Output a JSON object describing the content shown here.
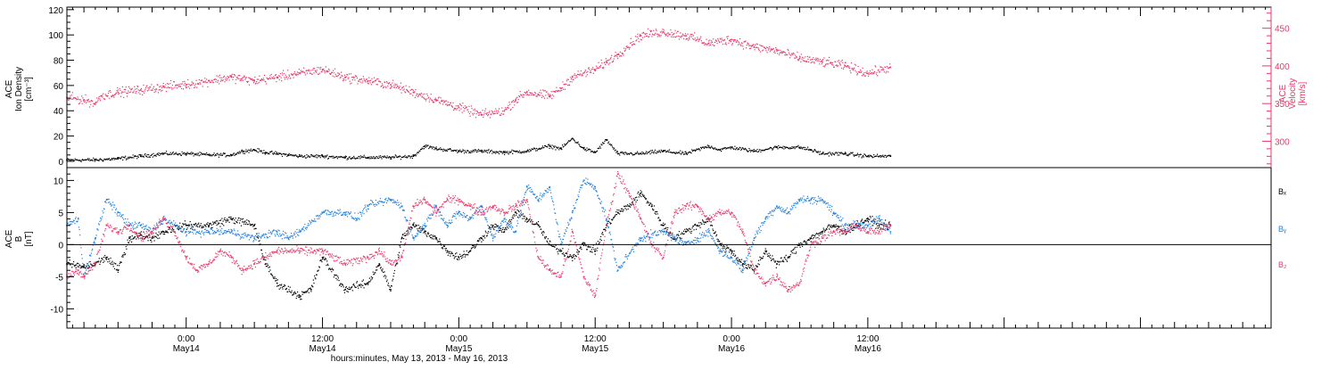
{
  "colors": {
    "black": "#000000",
    "density": "#000000",
    "velocity": "#e8386a",
    "bx": "#000000",
    "by": "#1f7fe0",
    "bz": "#e8386a"
  },
  "xaxis": {
    "title": "hours:minutes, May 13, 2013 - May 16, 2013",
    "range_hours": [
      -10.5,
      95.5
    ],
    "major_ticks": [
      {
        "h": 0,
        "time": "0:00",
        "date": "May14"
      },
      {
        "h": 12,
        "time": "12:00",
        "date": "May14"
      },
      {
        "h": 24,
        "time": "0:00",
        "date": "May15"
      },
      {
        "h": 36,
        "time": "12:00",
        "date": "May15"
      },
      {
        "h": 48,
        "time": "0:00",
        "date": "May16"
      },
      {
        "h": 60,
        "time": "12:00",
        "date": "May16"
      }
    ]
  },
  "chart_data": [
    {
      "type": "scatter",
      "panel": "plasma",
      "ylabel_left": [
        "ACE",
        "Ion Density",
        "[cm⁻³]"
      ],
      "ylabel_right": [
        "ACE",
        "Velocity",
        "[km/s]"
      ],
      "y_left_range": [
        -5,
        122
      ],
      "y_left_ticks": [
        0,
        20,
        40,
        60,
        80,
        100,
        120
      ],
      "y_right_range": [
        265,
        478
      ],
      "y_right_ticks": [
        300,
        350,
        400,
        450
      ],
      "series": [
        {
          "key": "density",
          "axis": "left",
          "x": [
            -10.5,
            -8,
            -6,
            -4,
            -2,
            0,
            2,
            4,
            5,
            6,
            7,
            8,
            9,
            10,
            12,
            14,
            16,
            18,
            20,
            21,
            22,
            24,
            26,
            28,
            30,
            32,
            33,
            34,
            35,
            36,
            37,
            38,
            40,
            42,
            44,
            46,
            47,
            48,
            50,
            52,
            54,
            55,
            56,
            58,
            60,
            62
          ],
          "y": [
            1,
            1,
            2,
            4,
            6,
            6,
            5,
            5,
            8,
            9,
            7,
            6,
            5,
            4,
            4,
            3,
            3,
            3,
            4,
            12,
            10,
            8,
            8,
            7,
            8,
            12,
            10,
            18,
            10,
            7,
            17,
            6,
            6,
            8,
            6,
            12,
            9,
            11,
            8,
            11,
            11,
            9,
            6,
            6,
            4,
            4
          ]
        },
        {
          "key": "velocity",
          "axis": "right",
          "x": [
            -10.5,
            -9,
            -8,
            -7.5,
            -6,
            -4,
            -2,
            0,
            2,
            4,
            6,
            8,
            10,
            12,
            14,
            16,
            18,
            20,
            22,
            24,
            26,
            28,
            29,
            30,
            31,
            32,
            33,
            34,
            36,
            37,
            38,
            40,
            42,
            44,
            46,
            48,
            50,
            52,
            54,
            56,
            58,
            60,
            62
          ],
          "y": [
            358,
            355,
            350,
            360,
            365,
            368,
            372,
            375,
            380,
            385,
            380,
            385,
            390,
            395,
            385,
            380,
            375,
            365,
            355,
            345,
            335,
            340,
            355,
            365,
            362,
            360,
            370,
            385,
            395,
            405,
            415,
            440,
            445,
            440,
            430,
            435,
            425,
            420,
            410,
            405,
            400,
            390,
            398
          ]
        }
      ]
    },
    {
      "type": "scatter",
      "panel": "magnetic",
      "ylabel_left": [
        "ACE",
        "B",
        "[nT]"
      ],
      "y_range": [
        -13,
        12
      ],
      "y_ticks": [
        -10,
        -5,
        0,
        5,
        10
      ],
      "legend": [
        "Bₓ",
        "Bᵧ",
        "B₂"
      ],
      "series": [
        {
          "key": "bx",
          "label": "Bₓ",
          "x": [
            -10.5,
            -9,
            -8,
            -7,
            -6,
            -5,
            -4,
            -3,
            -2,
            0,
            2,
            4,
            6,
            7,
            8,
            10,
            11,
            12,
            14,
            16,
            17,
            18,
            19,
            20,
            21,
            22,
            23,
            24,
            25,
            26,
            27,
            28,
            29,
            30,
            31,
            32,
            33,
            34,
            35,
            36,
            37,
            38,
            39,
            40,
            41,
            42,
            43,
            44,
            45,
            46,
            47,
            48,
            49,
            50,
            51,
            52,
            53,
            54,
            55,
            56,
            57,
            58,
            59,
            60,
            61,
            62
          ],
          "y": [
            -3,
            -3.5,
            -3,
            -2,
            -4,
            1,
            1.5,
            1,
            2,
            3,
            3,
            4,
            3,
            -3,
            -6,
            -8,
            -7,
            -2,
            -7,
            -6,
            -3,
            -7,
            1,
            3,
            2,
            1,
            -1,
            -2,
            -1,
            1,
            3,
            2,
            5,
            4,
            3,
            0,
            -1,
            -2,
            0,
            -1,
            3,
            5,
            6,
            8,
            6,
            3,
            1,
            2,
            3,
            4,
            0,
            -1,
            -3,
            -4,
            -1,
            -3,
            -2,
            0,
            1,
            2,
            3,
            2,
            3,
            4,
            3,
            3
          ]
        },
        {
          "key": "by",
          "label": "Bᵧ",
          "x": [
            -10.5,
            -9.5,
            -9,
            -8,
            -7,
            -6,
            -5,
            -4,
            -3,
            -2,
            -1,
            0,
            2,
            4,
            6,
            8,
            9,
            10,
            12,
            14,
            15,
            16,
            18,
            19,
            20,
            21,
            22,
            23,
            24,
            25,
            26,
            27,
            28,
            29,
            30,
            31,
            32,
            33,
            34,
            35,
            36,
            37,
            38,
            40,
            42,
            43,
            44,
            45,
            46,
            47,
            48,
            49,
            50,
            51,
            52,
            53,
            54,
            55,
            56,
            57,
            58,
            59,
            60,
            61,
            62
          ],
          "y": [
            3,
            4,
            -5,
            1,
            7,
            5,
            3,
            3,
            2,
            4,
            3,
            2,
            2,
            2,
            1,
            2,
            1,
            2,
            5,
            5,
            4,
            6,
            7,
            6,
            1,
            3,
            6,
            3,
            5,
            4,
            6,
            1,
            4,
            2,
            9,
            7,
            9,
            0,
            5,
            10,
            9,
            4,
            -4,
            1,
            2,
            1,
            0,
            1,
            2,
            -1,
            -2,
            -4,
            1,
            4,
            6,
            5,
            7,
            7,
            7,
            5,
            3,
            3,
            3,
            4,
            2
          ]
        },
        {
          "key": "bz",
          "label": "B₂",
          "x": [
            -10.5,
            -9.5,
            -9,
            -8,
            -7,
            -6,
            -5,
            -4,
            -3,
            -2,
            -1,
            0,
            1,
            2,
            3,
            4,
            5,
            6,
            8,
            10,
            12,
            14,
            16,
            17,
            18,
            19,
            20,
            21,
            22,
            23,
            24,
            25,
            26,
            27,
            28,
            29,
            30,
            31,
            32,
            33,
            34,
            35,
            36,
            37,
            38,
            39,
            40,
            41,
            42,
            43,
            44,
            45,
            46,
            47,
            48,
            49,
            50,
            51,
            52,
            53,
            54,
            55,
            56,
            57,
            58,
            59,
            60,
            61,
            62
          ],
          "y": [
            -5,
            -4,
            -5,
            -3,
            3,
            2,
            3,
            1,
            2,
            4,
            2,
            -2,
            -4,
            -3,
            -1,
            -2,
            -4,
            -3,
            -1,
            -1,
            -1,
            -3,
            -2,
            -1,
            -3,
            -2,
            6,
            7,
            5,
            7,
            7,
            6,
            5,
            6,
            5,
            6,
            7,
            -2,
            -4,
            -5,
            2,
            -5,
            -8,
            3,
            11,
            8,
            4,
            0,
            -2,
            5,
            6,
            6,
            4,
            5,
            5,
            2,
            -4,
            -6,
            -5,
            -7,
            -6,
            0,
            1,
            2,
            2,
            3,
            2,
            2,
            3
          ]
        }
      ]
    }
  ]
}
